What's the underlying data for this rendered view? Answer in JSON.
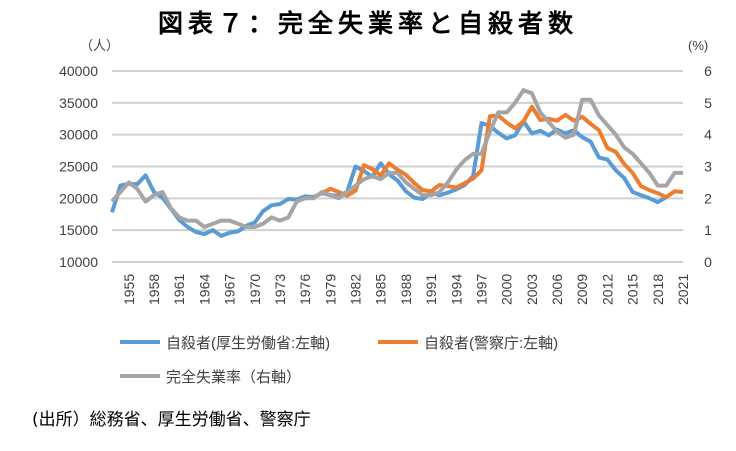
{
  "title": "図表７：完全失業率と自殺者数",
  "source": "(出所）総務省、厚生労働省、警察庁",
  "chart_data": {
    "type": "line",
    "title": "図表７：完全失業率と自殺者数",
    "ylabel_left": "（人）",
    "ylabel_right": "(%)",
    "ylim_left": [
      10000,
      40000
    ],
    "ylim_right": [
      0,
      6
    ],
    "yticks_left": [
      "10000",
      "15000",
      "20000",
      "25000",
      "30000",
      "35000",
      "40000"
    ],
    "yticks_right": [
      "0",
      "1",
      "2",
      "3",
      "4",
      "5",
      "6"
    ],
    "xticks": [
      "1955",
      "1958",
      "1961",
      "1964",
      "1967",
      "1970",
      "1973",
      "1976",
      "1979",
      "1982",
      "1985",
      "1988",
      "1991",
      "1994",
      "1997",
      "2000",
      "2003",
      "2006",
      "2009",
      "2012",
      "2015",
      "2018",
      "2021"
    ],
    "grid": true,
    "legend_position": "bottom",
    "series": [
      {
        "name": "自殺者(厚生労働省:左軸)",
        "axis": "left",
        "color": "#5b9bd5",
        "start": 1953,
        "values": [
          17800,
          22000,
          22300,
          22200,
          23600,
          21000,
          20100,
          18400,
          16600,
          15500,
          14700,
          14400,
          15000,
          14100,
          14600,
          14800,
          15700,
          16200,
          18000,
          18900,
          19100,
          19900,
          19800,
          20300,
          20200,
          20800,
          20500,
          20400,
          21000,
          25000,
          24300,
          23400,
          25500,
          23800,
          22800,
          21100,
          20100,
          19900,
          20900,
          20500,
          20900,
          21400,
          22100,
          23500,
          31800,
          31400,
          30300,
          29400,
          29900,
          32100,
          30200,
          30600,
          29900,
          30800,
          30200,
          30700,
          29600,
          28900,
          26400,
          26100,
          24400,
          23200,
          21000,
          20500,
          20000,
          19400,
          20200
        ]
      },
      {
        "name": "自殺者(警察庁:左軸)",
        "axis": "left",
        "color": "#ed7d31",
        "start": 1978,
        "values": [
          20800,
          21500,
          21000,
          20400,
          21200,
          25200,
          24600,
          23600,
          25500,
          24500,
          23700,
          22400,
          21300,
          21100,
          22100,
          21900,
          21700,
          22400,
          23100,
          24400,
          32900,
          33000,
          31900,
          31000,
          32100,
          34400,
          32300,
          32500,
          32200,
          33100,
          32200,
          32800,
          31700,
          30700,
          27900,
          27300,
          25400,
          24000,
          21900,
          21300,
          20800,
          20200,
          21100,
          21000
        ]
      },
      {
        "name": "完全失業率（右軸）",
        "axis": "right",
        "color": "#a5a5a5",
        "start": 1953,
        "values": [
          1.9,
          2.2,
          2.5,
          2.3,
          1.9,
          2.1,
          2.2,
          1.7,
          1.4,
          1.3,
          1.3,
          1.1,
          1.2,
          1.3,
          1.3,
          1.2,
          1.1,
          1.1,
          1.2,
          1.4,
          1.3,
          1.4,
          1.9,
          2.0,
          2.0,
          2.2,
          2.1,
          2.0,
          2.2,
          2.4,
          2.6,
          2.7,
          2.6,
          2.8,
          2.8,
          2.5,
          2.3,
          2.1,
          2.1,
          2.2,
          2.5,
          2.9,
          3.2,
          3.4,
          3.4,
          4.1,
          4.7,
          4.7,
          5.0,
          5.4,
          5.3,
          4.7,
          4.4,
          4.1,
          3.9,
          4.0,
          5.1,
          5.1,
          4.6,
          4.3,
          4.0,
          3.6,
          3.4,
          3.1,
          2.8,
          2.4,
          2.4,
          2.8,
          2.8
        ]
      }
    ]
  }
}
